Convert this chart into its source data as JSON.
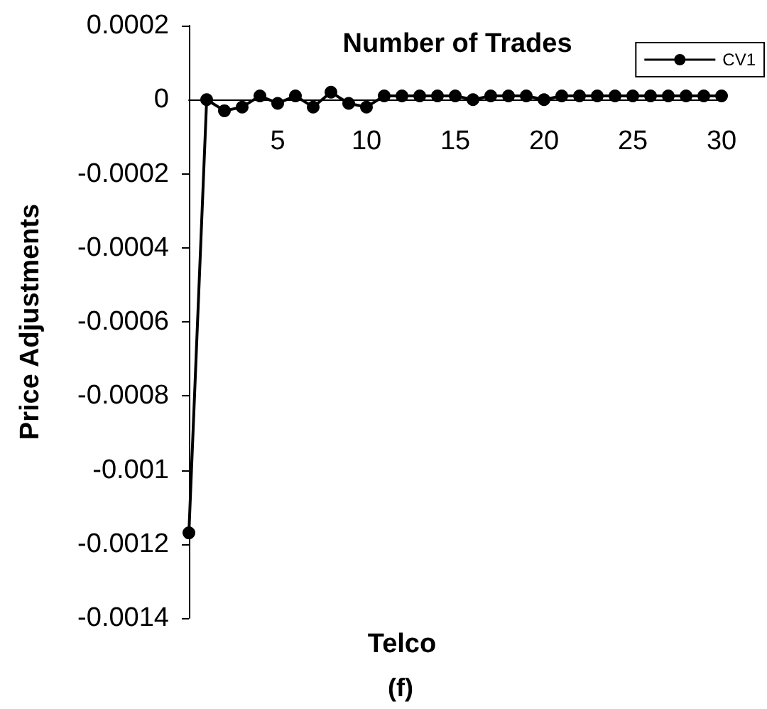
{
  "chart_data": {
    "type": "line",
    "title": "Telco",
    "xlabel": "Number of Trades",
    "ylabel": "Price Adjustments",
    "annotations": [
      "(f)"
    ],
    "x": [
      0,
      1,
      2,
      3,
      4,
      5,
      6,
      7,
      8,
      9,
      10,
      11,
      12,
      13,
      14,
      15,
      16,
      17,
      18,
      19,
      20,
      21,
      22,
      23,
      24,
      25,
      26,
      27,
      28,
      29,
      30
    ],
    "series": [
      {
        "name": "CV1",
        "color": "#000000",
        "values": [
          -0.00117,
          0,
          -3e-05,
          -2e-05,
          1e-05,
          -1e-05,
          1e-05,
          -2e-05,
          2e-05,
          -1e-05,
          -2e-05,
          1e-05,
          1e-05,
          1e-05,
          1e-05,
          1e-05,
          0,
          1e-05,
          1e-05,
          1e-05,
          0,
          1e-05,
          1e-05,
          1e-05,
          1e-05,
          1e-05,
          1e-05,
          1e-05,
          1e-05,
          1e-05,
          1e-05
        ]
      }
    ],
    "xlim": [
      0,
      30
    ],
    "xticks": [
      5,
      10,
      15,
      20,
      25,
      30
    ],
    "ylim": [
      -0.0014,
      0.0002
    ],
    "yticks": [
      -0.0014,
      -0.0012,
      -0.001,
      -0.0008,
      -0.0006,
      -0.0004,
      -0.0002,
      0,
      0.0002
    ],
    "grid": false,
    "legend": "top right",
    "marker": "circle",
    "line_style": "solid"
  }
}
